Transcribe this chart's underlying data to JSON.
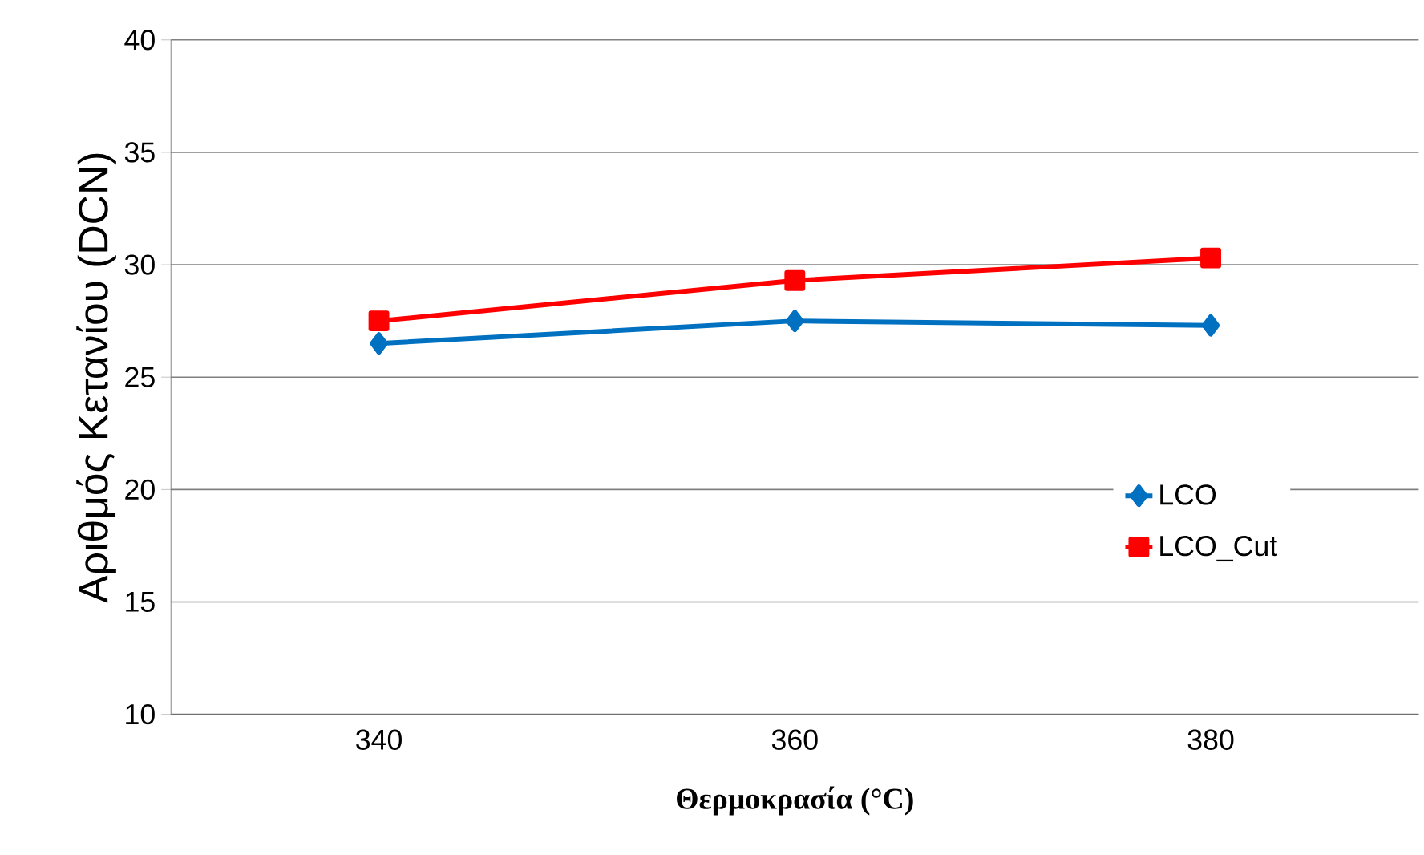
{
  "chart_data": {
    "type": "line",
    "xlabel": "Θερμοκρασία (°C)",
    "ylabel": "Αριθμός Κετανίου (DCN)",
    "categories": [
      "340",
      "360",
      "380"
    ],
    "series": [
      {
        "name": "LCO",
        "color": "#0070c0",
        "values": [
          26.5,
          27.5,
          27.3
        ],
        "marker": "diamond"
      },
      {
        "name": "LCO_Cut",
        "color": "#ff0000",
        "values": [
          27.5,
          29.3,
          30.3
        ],
        "marker": "square"
      }
    ],
    "ylim": [
      10,
      40
    ],
    "yticks": [
      10,
      15,
      20,
      25,
      30,
      35,
      40
    ],
    "grid": "y",
    "legend": "right",
    "line_style": "solid"
  }
}
